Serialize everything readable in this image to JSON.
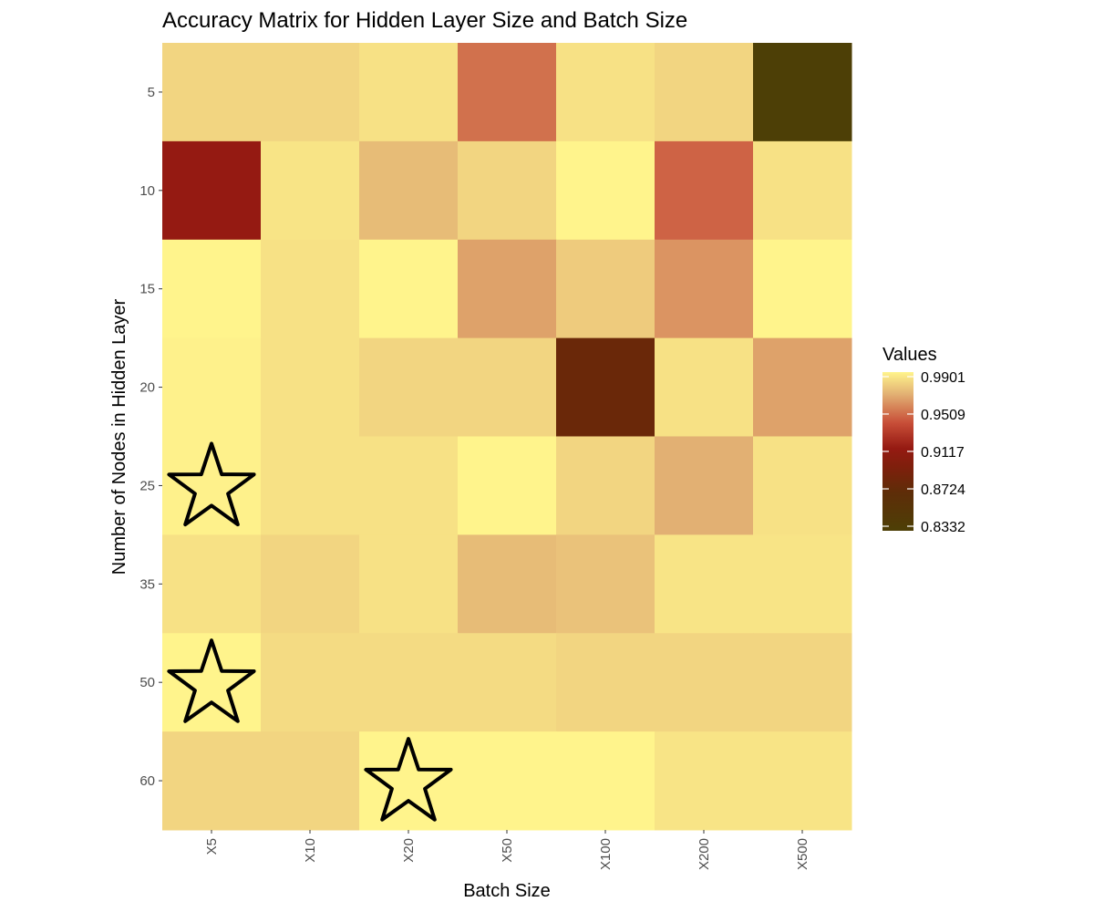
{
  "chart_data": {
    "type": "heatmap",
    "title": "Accuracy Matrix for Hidden Layer Size and Batch Size",
    "xlabel": "Batch Size",
    "ylabel": "Number of Nodes in Hidden Layer",
    "x_categories": [
      "X5",
      "X10",
      "X20",
      "X50",
      "X100",
      "X200",
      "X500"
    ],
    "y_categories": [
      "5",
      "10",
      "15",
      "20",
      "25",
      "35",
      "50",
      "60"
    ],
    "values": [
      [
        0.98,
        0.98,
        0.984,
        0.95,
        0.984,
        0.98,
        0.833
      ],
      [
        0.915,
        0.985,
        0.972,
        0.98,
        0.99,
        0.946,
        0.984
      ],
      [
        0.99,
        0.984,
        0.99,
        0.964,
        0.977,
        0.96,
        0.99
      ],
      [
        0.989,
        0.984,
        0.98,
        0.98,
        0.88,
        0.984,
        0.964
      ],
      [
        0.989,
        0.984,
        0.984,
        0.99,
        0.98,
        0.968,
        0.984
      ],
      [
        0.984,
        0.98,
        0.984,
        0.972,
        0.974,
        0.985,
        0.985
      ],
      [
        0.99,
        0.982,
        0.982,
        0.982,
        0.98,
        0.98,
        0.98
      ],
      [
        0.98,
        0.98,
        0.99,
        0.99,
        0.99,
        0.985,
        0.985
      ]
    ],
    "highlighted_cells": [
      {
        "x": "X5",
        "y": "25"
      },
      {
        "x": "X5",
        "y": "50"
      },
      {
        "x": "X20",
        "y": "60"
      }
    ],
    "legend": {
      "title": "Values",
      "labels": [
        "0.9901",
        "0.9509",
        "0.9117",
        "0.8724",
        "0.8332"
      ],
      "breaks": [
        0.9901,
        0.9509,
        0.9117,
        0.8724,
        0.8332
      ],
      "colormap": [
        "#4d3f06",
        "#7e1f0c",
        "#c84e38",
        "#e2b073",
        "#fff48c"
      ],
      "placement": "right"
    }
  }
}
